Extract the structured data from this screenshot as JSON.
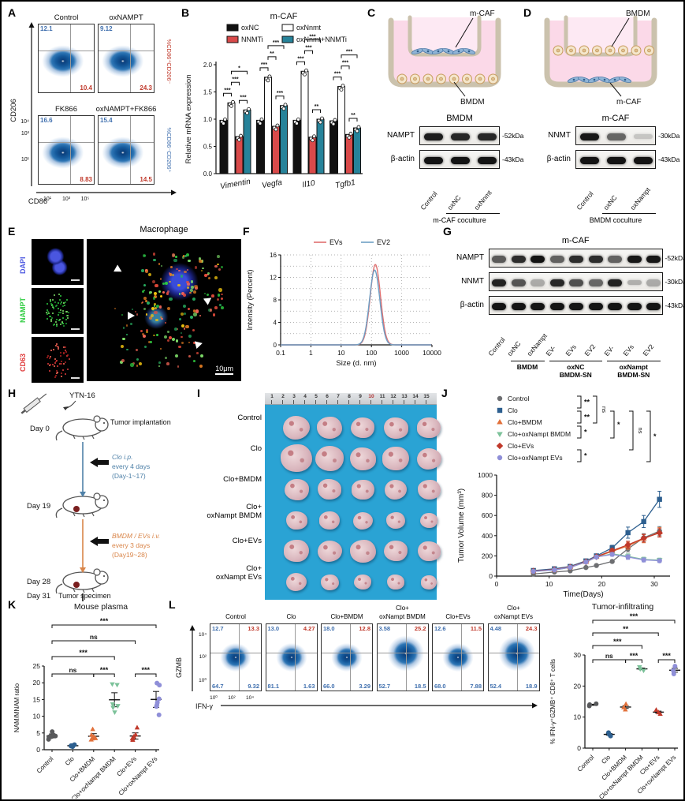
{
  "panel_a": {
    "label": "A",
    "plots": [
      {
        "title": "Control",
        "tl": "12.1",
        "br": "10.4"
      },
      {
        "title": "oxNAMPT",
        "tl": "9.12",
        "br": "24.3"
      },
      {
        "title": "FK866",
        "tl": "16.6",
        "br": "8.83"
      },
      {
        "title": "oxNAMPT+FK866",
        "tl": "15.4",
        "br": "14.5"
      }
    ],
    "y_label": "CD206",
    "x_label": "CD86",
    "x_ticks": [
      "10¹",
      "10³",
      "10⁵"
    ],
    "y_ticks": [
      "10⁴",
      "10³",
      "10¹"
    ],
    "right_top": "%CD86⁺CD206⁻",
    "right_bottom": "%CD86⁻CD206⁺",
    "blue": "#3f6fae",
    "red": "#c0392b"
  },
  "panel_b": {
    "label": "B",
    "title": "m-CAF",
    "ylabel": "Relative mRNA expression",
    "legend": [
      {
        "label": "oxNC",
        "fill": "#111111"
      },
      {
        "label": "oxNnmt",
        "fill": "#ffffff"
      },
      {
        "label": "NNMTi",
        "fill": "#d94a4a"
      },
      {
        "label": "oxNnmt+NNMTi",
        "fill": "#27839a"
      }
    ],
    "chart_data": {
      "type": "bar",
      "categories": [
        "Vimentin",
        "Vegfa",
        "Il10",
        "Tgfb1"
      ],
      "series": [
        {
          "name": "oxNC",
          "values": [
            0.98,
            0.98,
            0.98,
            0.97
          ]
        },
        {
          "name": "oxNnmt",
          "values": [
            1.3,
            1.77,
            1.88,
            1.6
          ]
        },
        {
          "name": "NNMTi",
          "values": [
            0.68,
            0.87,
            0.67,
            0.72
          ]
        },
        {
          "name": "oxNnmt+NNMTi",
          "values": [
            1.17,
            1.25,
            1.0,
            0.84
          ]
        }
      ],
      "ylim": [
        0,
        2.0
      ],
      "yticks": [
        0,
        0.5,
        1.0,
        1.5,
        2.0
      ]
    },
    "sig": [
      [
        "***",
        "***",
        "***",
        "*"
      ],
      [
        "***",
        "**",
        "***",
        "***"
      ],
      [
        "***",
        "***",
        "**",
        "***"
      ],
      [
        "***",
        "***",
        "**",
        "***"
      ]
    ]
  },
  "panel_c": {
    "label": "C",
    "insert_label": "m-CAF",
    "well_label": "BMDM",
    "blot": {
      "title": "BMDM",
      "rows": [
        {
          "name": "NAMPT",
          "kda": "-52kDa",
          "bands": [
            0.92,
            0.88,
            0.88
          ]
        },
        {
          "name": "β-actin",
          "kda": "-43kDa",
          "bands": [
            0.96,
            0.96,
            0.96
          ]
        }
      ],
      "lanes": [
        "Control",
        "oxNC",
        "oxNnmt"
      ],
      "group": "m-CAF coculture"
    }
  },
  "panel_d": {
    "label": "D",
    "insert_label": "BMDM",
    "well_label": "m-CAF",
    "blot": {
      "title": "m-CAF",
      "rows": [
        {
          "name": "NNMT",
          "kda": "-30kDa",
          "bands": [
            0.95,
            0.6,
            0.18
          ]
        },
        {
          "name": "β-actin",
          "kda": "-43kDa",
          "bands": [
            0.96,
            0.96,
            0.96
          ]
        }
      ],
      "lanes": [
        "Control",
        "oxNC",
        "oxNampt"
      ],
      "group": "BMDM coculture"
    }
  },
  "panel_e": {
    "label": "E",
    "title": "Macrophage",
    "channels": [
      {
        "name": "DAPI",
        "color": "#4a56e0"
      },
      {
        "name": "NAMPT",
        "color": "#2ecc40"
      },
      {
        "name": "CD63",
        "color": "#e03c3c"
      }
    ],
    "scale_bar": "10μm"
  },
  "panel_f": {
    "label": "F",
    "chart_data": {
      "type": "line",
      "xlabel": "Size (d. nm)",
      "ylabel": "Intensity (Percent)",
      "x_scale": "log",
      "xticks": [
        "0.1",
        "1",
        "10",
        "100",
        "1000",
        "10000"
      ],
      "yticks": [
        0,
        4,
        8,
        12,
        16
      ],
      "ylim": [
        0,
        16
      ],
      "series": [
        {
          "name": "EVs",
          "color": "#e07070",
          "peak_intensity": 14.3,
          "peak_size_nm": 135
        },
        {
          "name": "EV2",
          "color": "#6e9ec4",
          "peak_intensity": 13.3,
          "peak_size_nm": 128
        }
      ]
    }
  },
  "panel_g": {
    "label": "G",
    "title": "m-CAF",
    "rows": [
      {
        "name": "NAMPT",
        "kda": "-52kDa",
        "bands": [
          0.65,
          0.85,
          0.97,
          0.62,
          0.85,
          0.85,
          0.62,
          0.95,
          0.95
        ]
      },
      {
        "name": "NNMT",
        "kda": "-30kDa",
        "bands": [
          0.9,
          0.68,
          0.3,
          0.88,
          0.7,
          0.6,
          0.9,
          0.28,
          0.3
        ]
      },
      {
        "name": "β-actin",
        "kda": "-43kDa",
        "bands": [
          0.96,
          0.96,
          0.96,
          0.96,
          0.96,
          0.96,
          0.96,
          0.96,
          0.96
        ]
      }
    ],
    "lanes": [
      "Control",
      "oxNC",
      "oxNampt",
      "EV-",
      "EVs",
      "EV2",
      "EV-",
      "EVs",
      "EV2"
    ],
    "groups": [
      {
        "l1": "BMDM",
        "l2": "",
        "from": 1,
        "to": 2
      },
      {
        "l1": "oxNC",
        "l2": "BMDM-SN",
        "from": 3,
        "to": 5
      },
      {
        "l1": "oxNampt",
        "l2": "BMDM-SN",
        "from": 6,
        "to": 8
      }
    ]
  },
  "panel_h": {
    "label": "H",
    "injection": "YTN-16",
    "day0": "Day 0",
    "day19": "Day 19",
    "day28": "Day 28",
    "day31": "Day 31",
    "event0": "Tumor implantation",
    "event31": "Tumor specimen",
    "blue_lines": [
      "Clo i.p.",
      "every 4 days",
      "(Day-1~17)"
    ],
    "orange_lines": [
      "BMDM / EVs i.v.",
      "every 3 days",
      "(Day19~28)"
    ],
    "blue": "#4f81a8",
    "orange": "#d98549"
  },
  "panel_i": {
    "label": "I",
    "ruler": [
      "1",
      "2",
      "3",
      "4",
      "5",
      "6",
      "7",
      "8",
      "9",
      "10",
      "11",
      "12",
      "13",
      "14",
      "15"
    ],
    "ruler_red": "10",
    "rows": [
      {
        "l1": "",
        "l2": "Control",
        "sizes": [
          34,
          32,
          30,
          31,
          30
        ]
      },
      {
        "l1": "",
        "l2": "Clo",
        "sizes": [
          40,
          36,
          33,
          34,
          31
        ]
      },
      {
        "l1": "",
        "l2": "Clo+BMDM",
        "sizes": [
          31,
          30,
          29,
          28,
          29
        ]
      },
      {
        "l1": "Clo+",
        "l2": "oxNampt BMDM",
        "sizes": [
          27,
          26,
          25,
          24,
          22
        ]
      },
      {
        "l1": "",
        "l2": "Clo+EVs",
        "sizes": [
          32,
          31,
          33,
          30,
          29
        ]
      },
      {
        "l1": "Clo+",
        "l2": "oxNampt EVs",
        "sizes": [
          26,
          23,
          22,
          22,
          20
        ]
      }
    ]
  },
  "panel_j": {
    "label": "J",
    "chart_data": {
      "type": "line",
      "xlabel": "Time(Days)",
      "ylabel": "Tumor Volume (mm³)",
      "x": [
        7,
        11,
        14,
        17,
        19,
        22,
        25,
        28,
        31
      ],
      "xticks": [
        0,
        10,
        20,
        30
      ],
      "yticks": [
        0,
        200,
        400,
        600,
        800,
        1000
      ],
      "ylim": [
        0,
        1000
      ],
      "series": [
        {
          "name": "Control",
          "color": "#6d6e71",
          "marker": "circle",
          "values": [
            20,
            40,
            52,
            85,
            105,
            145,
            270,
            380,
            445
          ],
          "err": [
            5,
            6,
            6,
            8,
            10,
            14,
            30,
            40,
            45
          ]
        },
        {
          "name": "Clo",
          "color": "#2d5f8f",
          "marker": "square",
          "values": [
            55,
            72,
            95,
            150,
            200,
            280,
            430,
            540,
            760
          ],
          "err": [
            8,
            8,
            10,
            14,
            18,
            25,
            55,
            60,
            80
          ]
        },
        {
          "name": "Clo+BMDM",
          "color": "#e2703a",
          "marker": "triup",
          "values": [
            48,
            62,
            88,
            140,
            190,
            245,
            300,
            370,
            435
          ],
          "err": [
            6,
            6,
            8,
            10,
            12,
            20,
            35,
            40,
            45
          ]
        },
        {
          "name": "Clo+oxNampt BMDM",
          "color": "#7cc29a",
          "marker": "tridown",
          "values": [
            46,
            60,
            86,
            138,
            188,
            220,
            195,
            165,
            158
          ],
          "err": [
            6,
            6,
            8,
            10,
            12,
            18,
            25,
            22,
            20
          ]
        },
        {
          "name": "Clo+EVs",
          "color": "#c0392b",
          "marker": "diamond",
          "values": [
            50,
            64,
            90,
            142,
            192,
            252,
            310,
            375,
            428
          ],
          "err": [
            6,
            6,
            8,
            10,
            12,
            20,
            35,
            38,
            42
          ]
        },
        {
          "name": "Clo+oxNampt EVs",
          "color": "#8f8fd8",
          "marker": "circle",
          "values": [
            47,
            61,
            87,
            139,
            189,
            215,
            188,
            160,
            152
          ],
          "err": [
            6,
            6,
            8,
            10,
            12,
            18,
            22,
            20,
            18
          ]
        }
      ]
    },
    "sig": [
      "**",
      "**",
      "ns",
      "*",
      "*",
      "*",
      "ns",
      "*"
    ]
  },
  "panel_k": {
    "label": "K",
    "title": "Mouse plasma",
    "ylabel": "NAM/MNAM ratio",
    "chart_data": {
      "type": "scatter",
      "categories": [
        "Control",
        "Clo",
        "Clo+BMDM",
        "Clo+oxNampt BMDM",
        "Clo+EVs",
        "Clo+oxNampt EVs"
      ],
      "colors": [
        "#58595b",
        "#2d5f8f",
        "#e2703a",
        "#7cc29a",
        "#c0392b",
        "#8f8fd8"
      ],
      "yticks": [
        0,
        5,
        10,
        15,
        20,
        25
      ],
      "ylim": [
        0,
        25
      ],
      "points": [
        [
          3.1,
          3.8,
          4.1,
          4.4,
          5.4,
          3.9
        ],
        [
          0.9,
          1.1,
          1.3,
          1.5,
          1.2
        ],
        [
          3.0,
          3.4,
          3.9,
          4.4,
          6.1,
          3.3
        ],
        [
          11.2,
          12.6,
          13.1,
          13.6,
          19.4,
          19.6
        ],
        [
          2.9,
          3.4,
          3.9,
          4.5,
          6.6,
          3.3
        ],
        [
          10.4,
          12.9,
          13.4,
          14.1,
          19.3,
          19.9,
          15.2
        ]
      ]
    },
    "sig": [
      {
        "a": 0,
        "b": 2,
        "l": "ns"
      },
      {
        "a": 2,
        "b": 3,
        "l": "***"
      },
      {
        "a": 4,
        "b": 5,
        "l": "***"
      },
      {
        "a": 0,
        "b": 3,
        "l": "***"
      },
      {
        "a": 0,
        "b": 4,
        "l": "ns"
      },
      {
        "a": 0,
        "b": 5,
        "l": "***"
      }
    ]
  },
  "panel_l": {
    "label": "L",
    "y_label": "GZMB",
    "x_label": "IFN-γ",
    "y_ticks": [
      "10⁴",
      "10²",
      "10⁰"
    ],
    "x_ticks": [
      "10⁰",
      "10²",
      "10⁴"
    ],
    "plots": [
      {
        "t1": "",
        "t2": "Control",
        "tl": "12.7",
        "tr": "13.3",
        "bl": "64.7",
        "br": "9.32"
      },
      {
        "t1": "",
        "t2": "Clo",
        "tl": "13.0",
        "tr": "4.27",
        "bl": "81.1",
        "br": "1.63"
      },
      {
        "t1": "",
        "t2": "Clo+BMDM",
        "tl": "18.0",
        "tr": "12.8",
        "bl": "66.0",
        "br": "3.29"
      },
      {
        "t1": "Clo+",
        "t2": "oxNampt BMDM",
        "tl": "3.58",
        "tr": "25.2",
        "bl": "52.7",
        "br": "18.5"
      },
      {
        "t1": "",
        "t2": "Clo+EVs",
        "tl": "12.6",
        "tr": "11.5",
        "bl": "68.0",
        "br": "7.88"
      },
      {
        "t1": "Clo+",
        "t2": "oxNampt EVs",
        "tl": "4.48",
        "tr": "24.3",
        "bl": "52.4",
        "br": "18.9"
      }
    ],
    "right": {
      "title": "Tumor-infiltrating",
      "ylabel": "% IFN-γ⁺GZMB⁺ CD8⁺ T cells",
      "chart_data": {
        "type": "scatter",
        "categories": [
          "Control",
          "Clo",
          "Clo+BMDM",
          "Clo+oxNampt BMDM",
          "Clo+EVs",
          "Clo+oxNampt EVs"
        ],
        "colors": [
          "#58595b",
          "#2d5f8f",
          "#e2703a",
          "#7cc29a",
          "#c0392b",
          "#8f8fd8"
        ],
        "yticks": [
          0,
          10,
          20,
          30
        ],
        "ylim": [
          0,
          30
        ],
        "points": [
          [
            13.6,
            14.0,
            14.3
          ],
          [
            3.9,
            4.4,
            5.0
          ],
          [
            12.4,
            13.1,
            14.2
          ],
          [
            25.0,
            25.5,
            26.1
          ],
          [
            11.0,
            11.5,
            12.3
          ],
          [
            23.9,
            25.0,
            26.4
          ]
        ]
      },
      "sig": [
        {
          "a": 0,
          "b": 2,
          "l": "ns"
        },
        {
          "a": 2,
          "b": 3,
          "l": "***"
        },
        {
          "a": 4,
          "b": 5,
          "l": "***"
        },
        {
          "a": 0,
          "b": 3,
          "l": "***"
        },
        {
          "a": 0,
          "b": 4,
          "l": "**"
        },
        {
          "a": 0,
          "b": 5,
          "l": "***"
        }
      ]
    }
  }
}
